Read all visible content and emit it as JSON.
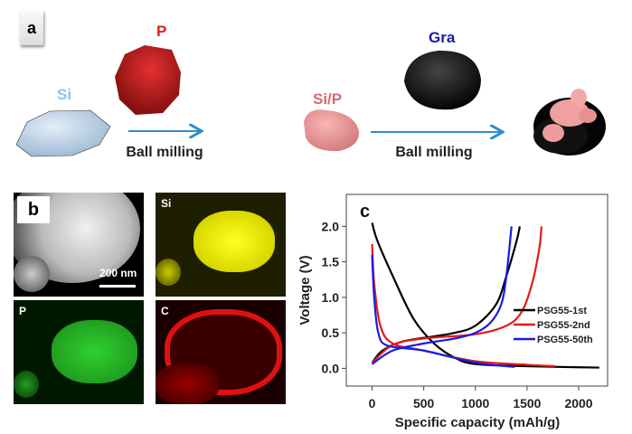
{
  "panel_a": {
    "label": "a",
    "si_label": "Si",
    "p_label": "P",
    "sip_label": "Si/P",
    "gra_label": "Gra",
    "step1": "Ball milling",
    "step2": "Ball milling",
    "colors": {
      "si": "#8fc3e8",
      "p": "#d62020",
      "sip": "#d96a6a",
      "gra": "#1a1aa8",
      "arrow": "#2f8ccc"
    }
  },
  "panel_b": {
    "label": "b",
    "scale_bar": "200 nm",
    "maps": [
      "Si",
      "P",
      "C"
    ]
  },
  "chart_data": {
    "type": "line",
    "panel_label": "c",
    "xlabel": "Specific capacity (mAh/g)",
    "ylabel": "Voltage (V)",
    "xlim": [
      -250,
      2280
    ],
    "ylim": [
      -0.25,
      2.45
    ],
    "xticks": [
      "0",
      "500",
      "1000",
      "1500",
      "2000"
    ],
    "yticks": [
      "0.0",
      "0.5",
      "1.0",
      "1.5",
      "2.0"
    ],
    "legend_position": "right",
    "series": [
      {
        "name": "PSG55-1st",
        "color": "#000000",
        "discharge": [
          [
            0,
            2.05
          ],
          [
            50,
            1.8
          ],
          [
            200,
            1.3
          ],
          [
            400,
            0.7
          ],
          [
            600,
            0.35
          ],
          [
            800,
            0.15
          ],
          [
            1000,
            0.06
          ],
          [
            1500,
            0.03
          ],
          [
            2200,
            0.01
          ]
        ],
        "charge": [
          [
            0,
            0.08
          ],
          [
            100,
            0.25
          ],
          [
            300,
            0.38
          ],
          [
            600,
            0.45
          ],
          [
            800,
            0.5
          ],
          [
            1000,
            0.6
          ],
          [
            1200,
            0.9
          ],
          [
            1300,
            1.3
          ],
          [
            1400,
            1.8
          ],
          [
            1430,
            2.0
          ]
        ]
      },
      {
        "name": "PSG55-2nd",
        "color": "#e31a1a",
        "discharge": [
          [
            0,
            1.75
          ],
          [
            20,
            1.2
          ],
          [
            80,
            0.6
          ],
          [
            200,
            0.35
          ],
          [
            500,
            0.25
          ],
          [
            1000,
            0.1
          ],
          [
            1500,
            0.05
          ],
          [
            1770,
            0.03
          ]
        ],
        "charge": [
          [
            0,
            0.08
          ],
          [
            200,
            0.33
          ],
          [
            500,
            0.42
          ],
          [
            1000,
            0.48
          ],
          [
            1300,
            0.6
          ],
          [
            1450,
            0.8
          ],
          [
            1550,
            1.2
          ],
          [
            1620,
            1.7
          ],
          [
            1640,
            2.0
          ]
        ]
      },
      {
        "name": "PSG55-50th",
        "color": "#1a1ae0",
        "discharge": [
          [
            0,
            1.6
          ],
          [
            20,
            1.0
          ],
          [
            60,
            0.5
          ],
          [
            150,
            0.32
          ],
          [
            500,
            0.25
          ],
          [
            1000,
            0.08
          ],
          [
            1380,
            0.02
          ]
        ],
        "charge": [
          [
            0,
            0.06
          ],
          [
            200,
            0.25
          ],
          [
            500,
            0.35
          ],
          [
            800,
            0.42
          ],
          [
            1000,
            0.5
          ],
          [
            1150,
            0.65
          ],
          [
            1250,
            0.9
          ],
          [
            1300,
            1.3
          ],
          [
            1350,
            2.0
          ]
        ]
      }
    ]
  }
}
